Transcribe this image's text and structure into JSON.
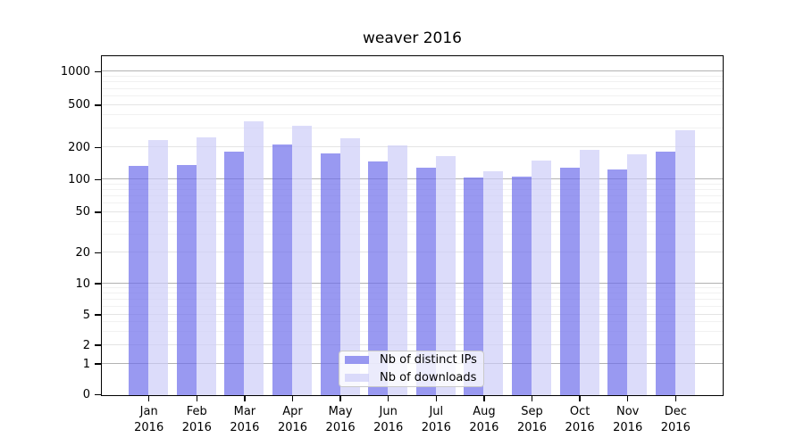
{
  "chart_data": {
    "type": "bar",
    "title": "weaver 2016",
    "months": [
      "Jan",
      "Feb",
      "Mar",
      "Apr",
      "May",
      "Jun",
      "Jul",
      "Aug",
      "Sep",
      "Oct",
      "Nov",
      "Dec"
    ],
    "year": "2016",
    "categories": [
      "Jan 2016",
      "Feb 2016",
      "Mar 2016",
      "Apr 2016",
      "May 2016",
      "Jun 2016",
      "Jul 2016",
      "Aug 2016",
      "Sep 2016",
      "Oct 2016",
      "Nov 2016",
      "Dec 2016"
    ],
    "series": [
      {
        "name": "Nb of distinct IPs",
        "color": "rgba(110,110,235,0.7)",
        "color_hex_on_white": "#9a9af1",
        "values": [
          137,
          140,
          186,
          215,
          179,
          150,
          131,
          106,
          109,
          131,
          127,
          186
        ]
      },
      {
        "name": "Nb of downloads",
        "color": "rgba(205,205,248,0.7)",
        "color_hex_on_white": "#dcdcfa",
        "values": [
          238,
          255,
          358,
          326,
          246,
          212,
          170,
          122,
          153,
          194,
          174,
          297
        ]
      }
    ],
    "y_axis": {
      "scale": "symlog",
      "tick_values": [
        0,
        1,
        2,
        5,
        10,
        20,
        50,
        100,
        200,
        500,
        1000
      ],
      "tick_labels": [
        "0",
        "1",
        "2",
        "5",
        "10",
        "20",
        "50",
        "100",
        "200",
        "500",
        "1000"
      ],
      "ylim": [
        0,
        1400
      ]
    },
    "grid": true,
    "legend": {
      "position": "lower-center"
    },
    "colors": {
      "major_grid": "#b2b2b2",
      "labeled_grid": "#e4e4e4",
      "minor_grid": "#f1f1f1",
      "spine": "#000000"
    }
  }
}
